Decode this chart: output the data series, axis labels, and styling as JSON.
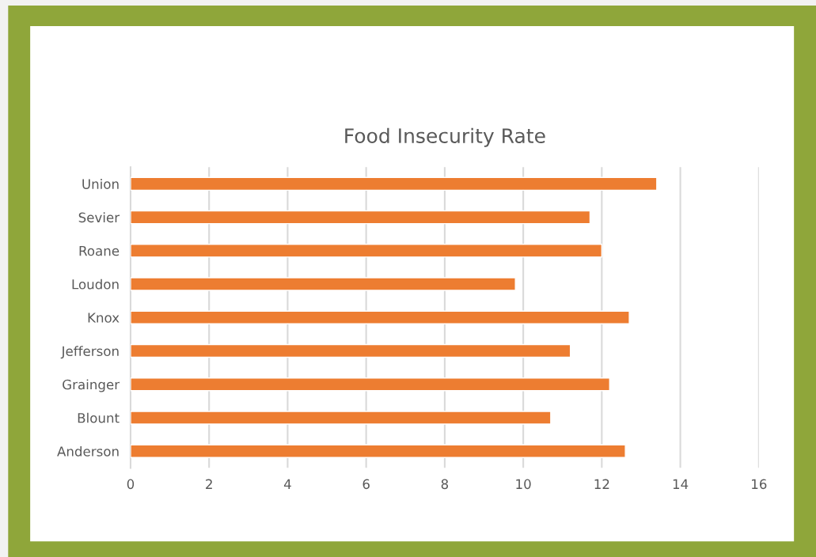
{
  "chart_data": {
    "type": "bar",
    "orientation": "horizontal",
    "title": "Food Insecurity Rate",
    "categories": [
      "Union",
      "Sevier",
      "Roane",
      "Loudon",
      "Knox",
      "Jefferson",
      "Grainger",
      "Blount",
      "Anderson"
    ],
    "values": [
      13.4,
      11.7,
      12.0,
      9.8,
      12.7,
      11.2,
      12.2,
      10.7,
      12.6
    ],
    "color": "#ed7d31",
    "xlim": [
      0,
      16
    ],
    "xticks": [
      0,
      2,
      4,
      6,
      8,
      10,
      12,
      14,
      16
    ],
    "grid": "x"
  }
}
